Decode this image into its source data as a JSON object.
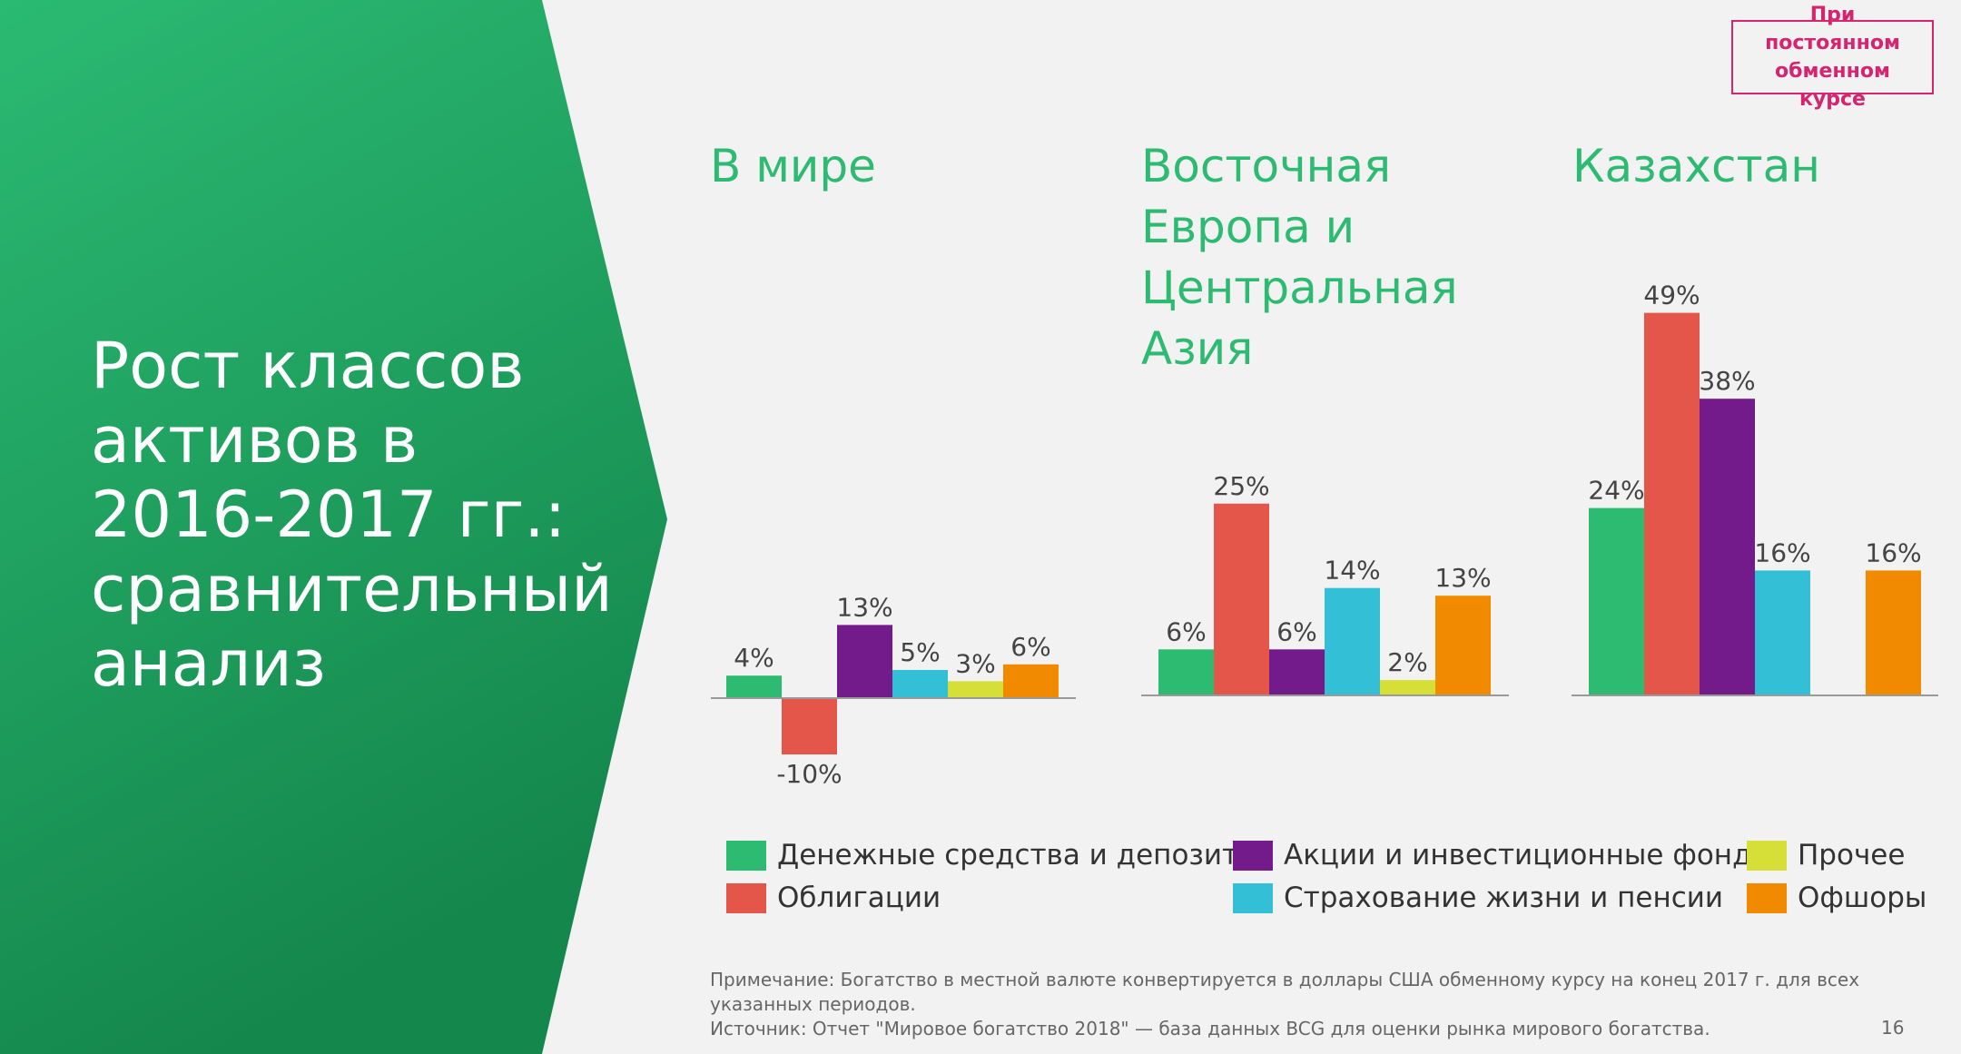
{
  "slide": {
    "title": "Рост классов активов в 2016-2017 гг.: сравнительный анализ",
    "badge": "При постоянном обменном курсе",
    "note": "Примечание: Богатство в местной валюте конвертируется в доллары США обменному курсу на конец 2017 г. для всех указанных периодов.",
    "source": "Источник: Отчет \"Мировое богатство 2018\" — база данных BCG для оценки рынка мирового богатства.",
    "page_number": "16"
  },
  "colors": {
    "green_panel": "#1f9e5e",
    "green_text": "#2dbb72",
    "badge": "#d6246e",
    "background": "#f2f2f2"
  },
  "chart_data": [
    {
      "type": "bar",
      "title": "В мире",
      "categories": [
        "Денежные средства и депозиты",
        "Облигации",
        "Акции и инвестиционные фонды",
        "Страхование жизни и пенсии",
        "Прочее",
        "Офшоры"
      ],
      "values": [
        4,
        -10,
        13,
        5,
        3,
        6
      ],
      "labels": [
        "4%",
        "-10%",
        "13%",
        "5%",
        "3%",
        "6%"
      ],
      "colors": [
        "#2dbb72",
        "#e4564a",
        "#741b8c",
        "#33c0d6",
        "#d6df38",
        "#f28a00"
      ],
      "unit": "%"
    },
    {
      "type": "bar",
      "title": "Восточная Европа и Центральная Азия",
      "categories": [
        "Денежные средства и депозиты",
        "Облигации",
        "Акции и инвестиционные фонды",
        "Страхование жизни и пенсии",
        "Прочее",
        "Офшоры"
      ],
      "values": [
        6,
        25,
        6,
        14,
        2,
        13
      ],
      "labels": [
        "6%",
        "25%",
        "6%",
        "14%",
        "2%",
        "13%"
      ],
      "colors": [
        "#2dbb72",
        "#e4564a",
        "#741b8c",
        "#33c0d6",
        "#d6df38",
        "#f28a00"
      ],
      "unit": "%"
    },
    {
      "type": "bar",
      "title": "Казахстан",
      "categories": [
        "Денежные средства и депозиты",
        "Облигации",
        "Акции и инвестиционные фонды",
        "Страхование жизни и пенсии",
        "Прочее",
        "Офшоры"
      ],
      "values": [
        24,
        49,
        38,
        16,
        null,
        16
      ],
      "labels": [
        "24%",
        "49%",
        "38%",
        "16%",
        "",
        "16%"
      ],
      "colors": [
        "#2dbb72",
        "#e4564a",
        "#741b8c",
        "#33c0d6",
        "#d6df38",
        "#f28a00"
      ],
      "unit": "%"
    }
  ],
  "legend": [
    {
      "label": "Денежные средства и депозиты",
      "color": "#2dbb72"
    },
    {
      "label": "Облигации",
      "color": "#e4564a"
    },
    {
      "label": "Акции и инвестиционные фонды",
      "color": "#741b8c"
    },
    {
      "label": "Страхование жизни и пенсии",
      "color": "#33c0d6"
    },
    {
      "label": "Прочее",
      "color": "#d6df38"
    },
    {
      "label": "Офшоры",
      "color": "#f28a00"
    }
  ]
}
